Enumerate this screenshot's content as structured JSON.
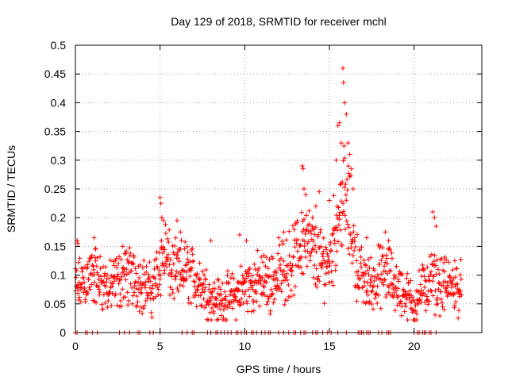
{
  "chart_data": {
    "type": "scatter",
    "title": "Day 129 of 2018, SRMTID for receiver mchl",
    "xlabel": "GPS time / hours",
    "ylabel": "SRMTID / TECUs",
    "xlim": [
      0,
      24
    ],
    "ylim": [
      0,
      0.5
    ],
    "xticks": [
      0,
      5,
      10,
      15,
      20
    ],
    "yticks": [
      0,
      0.05,
      0.1,
      0.15,
      0.2,
      0.25,
      0.3,
      0.35,
      0.4,
      0.45,
      0.5
    ],
    "grid": true,
    "marker": "plus",
    "color": "#ff0000",
    "trend": [
      [
        0.0,
        0.075
      ],
      [
        0.5,
        0.09
      ],
      [
        1.0,
        0.1
      ],
      [
        1.5,
        0.09
      ],
      [
        2.0,
        0.075
      ],
      [
        2.5,
        0.09
      ],
      [
        3.0,
        0.1
      ],
      [
        3.5,
        0.095
      ],
      [
        4.0,
        0.085
      ],
      [
        4.5,
        0.07
      ],
      [
        5.0,
        0.12
      ],
      [
        5.3,
        0.14
      ],
      [
        5.6,
        0.11
      ],
      [
        6.0,
        0.1
      ],
      [
        6.5,
        0.11
      ],
      [
        7.0,
        0.095
      ],
      [
        7.5,
        0.085
      ],
      [
        8.0,
        0.06
      ],
      [
        8.5,
        0.055
      ],
      [
        9.0,
        0.06
      ],
      [
        9.5,
        0.065
      ],
      [
        10.0,
        0.08
      ],
      [
        10.5,
        0.085
      ],
      [
        11.0,
        0.09
      ],
      [
        11.5,
        0.085
      ],
      [
        12.0,
        0.1
      ],
      [
        12.5,
        0.115
      ],
      [
        13.0,
        0.13
      ],
      [
        13.5,
        0.17
      ],
      [
        14.0,
        0.14
      ],
      [
        14.5,
        0.12
      ],
      [
        15.0,
        0.125
      ],
      [
        15.5,
        0.2
      ],
      [
        15.8,
        0.24
      ],
      [
        16.2,
        0.2
      ],
      [
        16.6,
        0.12
      ],
      [
        17.0,
        0.09
      ],
      [
        17.5,
        0.085
      ],
      [
        18.0,
        0.1
      ],
      [
        18.5,
        0.1
      ],
      [
        19.0,
        0.08
      ],
      [
        19.5,
        0.065
      ],
      [
        20.0,
        0.05
      ],
      [
        20.5,
        0.075
      ],
      [
        21.0,
        0.09
      ],
      [
        21.5,
        0.085
      ],
      [
        22.0,
        0.08
      ],
      [
        22.5,
        0.08
      ],
      [
        22.8,
        0.075
      ]
    ],
    "peaks": [
      [
        0.1,
        0.16
      ],
      [
        0.15,
        0.155
      ],
      [
        1.1,
        0.165
      ],
      [
        1.2,
        0.145
      ],
      [
        2.8,
        0.15
      ],
      [
        5.0,
        0.235
      ],
      [
        5.05,
        0.225
      ],
      [
        5.1,
        0.2
      ],
      [
        5.2,
        0.195
      ],
      [
        6.0,
        0.195
      ],
      [
        6.2,
        0.175
      ],
      [
        8.0,
        0.16
      ],
      [
        9.7,
        0.17
      ],
      [
        10.1,
        0.16
      ],
      [
        12.0,
        0.165
      ],
      [
        12.3,
        0.175
      ],
      [
        13.4,
        0.29
      ],
      [
        13.45,
        0.285
      ],
      [
        13.5,
        0.25
      ],
      [
        13.6,
        0.24
      ],
      [
        14.0,
        0.2
      ],
      [
        14.2,
        0.22
      ],
      [
        14.4,
        0.245
      ],
      [
        15.0,
        0.23
      ],
      [
        15.4,
        0.3
      ],
      [
        15.5,
        0.36
      ],
      [
        15.6,
        0.365
      ],
      [
        15.7,
        0.33
      ],
      [
        15.8,
        0.46
      ],
      [
        15.83,
        0.435
      ],
      [
        15.9,
        0.4
      ],
      [
        16.0,
        0.38
      ],
      [
        16.1,
        0.33
      ],
      [
        16.2,
        0.31
      ],
      [
        16.3,
        0.285
      ],
      [
        16.4,
        0.25
      ],
      [
        17.2,
        0.165
      ],
      [
        18.3,
        0.175
      ],
      [
        18.5,
        0.16
      ],
      [
        21.1,
        0.21
      ],
      [
        21.2,
        0.2
      ],
      [
        21.3,
        0.185
      ],
      [
        22.4,
        0.125
      ]
    ],
    "zeros": [
      0.0,
      0.1,
      0.6,
      0.7,
      1.0,
      1.3,
      2.6,
      2.9,
      3.2,
      3.7,
      3.8,
      4.4,
      4.6,
      5.0,
      6.3,
      6.6,
      6.9,
      7.0,
      7.8,
      8.0,
      8.3,
      8.4,
      8.6,
      8.8,
      9.0,
      9.2,
      9.5,
      9.6,
      9.8,
      10.0,
      10.1,
      10.4,
      10.5,
      10.7,
      11.0,
      11.2,
      11.4,
      11.5,
      12.0,
      12.3,
      12.6,
      12.9,
      13.0,
      13.3,
      13.5,
      13.6,
      14.0,
      14.2,
      14.3,
      14.6,
      14.9,
      15.1,
      15.5,
      16.0,
      16.7,
      16.8,
      16.9,
      17.0,
      17.2,
      17.3,
      17.4,
      17.9,
      18.1,
      18.4,
      18.5,
      18.6,
      20.0,
      20.2,
      20.3,
      20.5,
      20.6,
      20.7,
      20.9,
      21.0,
      21.3
    ]
  }
}
